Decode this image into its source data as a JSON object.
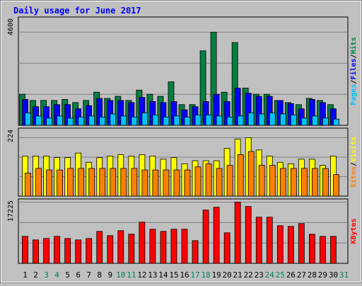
{
  "chart_data": [
    {
      "type": "bar",
      "title": "Daily usage for June 2017",
      "categories": [
        "1",
        "2",
        "3",
        "4",
        "5",
        "6",
        "7",
        "8",
        "9",
        "10",
        "11",
        "12",
        "13",
        "14",
        "15",
        "16",
        "17",
        "18",
        "19",
        "20",
        "21",
        "22",
        "23",
        "24",
        "25",
        "26",
        "27",
        "28",
        "29",
        "30",
        "31"
      ],
      "weekend_days": [
        "3",
        "4",
        "10",
        "11",
        "17",
        "18",
        "24",
        "25",
        "31"
      ],
      "ymax_label": "4600",
      "ylabel_parts": [
        "Pages",
        "/",
        "Files",
        "/",
        "Hits"
      ],
      "series": [
        {
          "name": "Hits",
          "color": "#008040",
          "values": [
            1500,
            1200,
            1200,
            1200,
            1250,
            1100,
            1200,
            1600,
            1300,
            1400,
            1200,
            1700,
            1500,
            1400,
            2100,
            1000,
            1000,
            3600,
            4500,
            1600,
            4000,
            1800,
            1500,
            1500,
            1200,
            1100,
            1000,
            1300,
            1200,
            1000,
            0
          ]
        },
        {
          "name": "Files",
          "color": "#0000ff",
          "values": [
            1250,
            900,
            900,
            1000,
            1000,
            800,
            950,
            1300,
            1200,
            1200,
            1100,
            1350,
            1150,
            1100,
            1150,
            750,
            900,
            1150,
            1500,
            1150,
            1800,
            1550,
            1400,
            1400,
            1200,
            1050,
            800,
            1250,
            1100,
            800,
            0
          ]
        },
        {
          "name": "Pages",
          "color": "#00c0ff",
          "values": [
            600,
            450,
            350,
            450,
            350,
            400,
            450,
            400,
            550,
            450,
            400,
            600,
            500,
            400,
            450,
            400,
            500,
            500,
            450,
            400,
            450,
            600,
            550,
            600,
            550,
            500,
            350,
            450,
            350,
            300,
            0
          ]
        }
      ]
    },
    {
      "type": "bar",
      "ymax_label": "224",
      "ylabel_parts": [
        "Sites",
        "/",
        "Visits"
      ],
      "series": [
        {
          "name": "Visits",
          "color": "#ffff00",
          "values": [
            130,
            130,
            130,
            125,
            125,
            140,
            110,
            125,
            130,
            135,
            130,
            135,
            130,
            120,
            125,
            105,
            115,
            115,
            115,
            155,
            185,
            190,
            150,
            130,
            110,
            105,
            120,
            120,
            100,
            130,
            0
          ]
        },
        {
          "name": "Sites",
          "color": "#ff8000",
          "values": [
            75,
            90,
            85,
            85,
            90,
            90,
            90,
            90,
            90,
            90,
            90,
            85,
            85,
            85,
            85,
            85,
            95,
            105,
            90,
            100,
            135,
            145,
            100,
            100,
            90,
            90,
            90,
            90,
            90,
            70,
            0
          ]
        }
      ]
    },
    {
      "type": "bar",
      "ymax_label": "17225",
      "ylabel_parts": [
        "KBytes"
      ],
      "series": [
        {
          "name": "KBytes",
          "color": "#ff0000",
          "values": [
            7600,
            6600,
            7000,
            7600,
            7000,
            6600,
            7000,
            9000,
            7800,
            9200,
            8200,
            11600,
            9600,
            9000,
            9600,
            9600,
            6400,
            15000,
            15800,
            8600,
            17225,
            16000,
            13000,
            13000,
            10600,
            10400,
            11200,
            8200,
            7600,
            7600,
            0
          ]
        }
      ]
    }
  ]
}
